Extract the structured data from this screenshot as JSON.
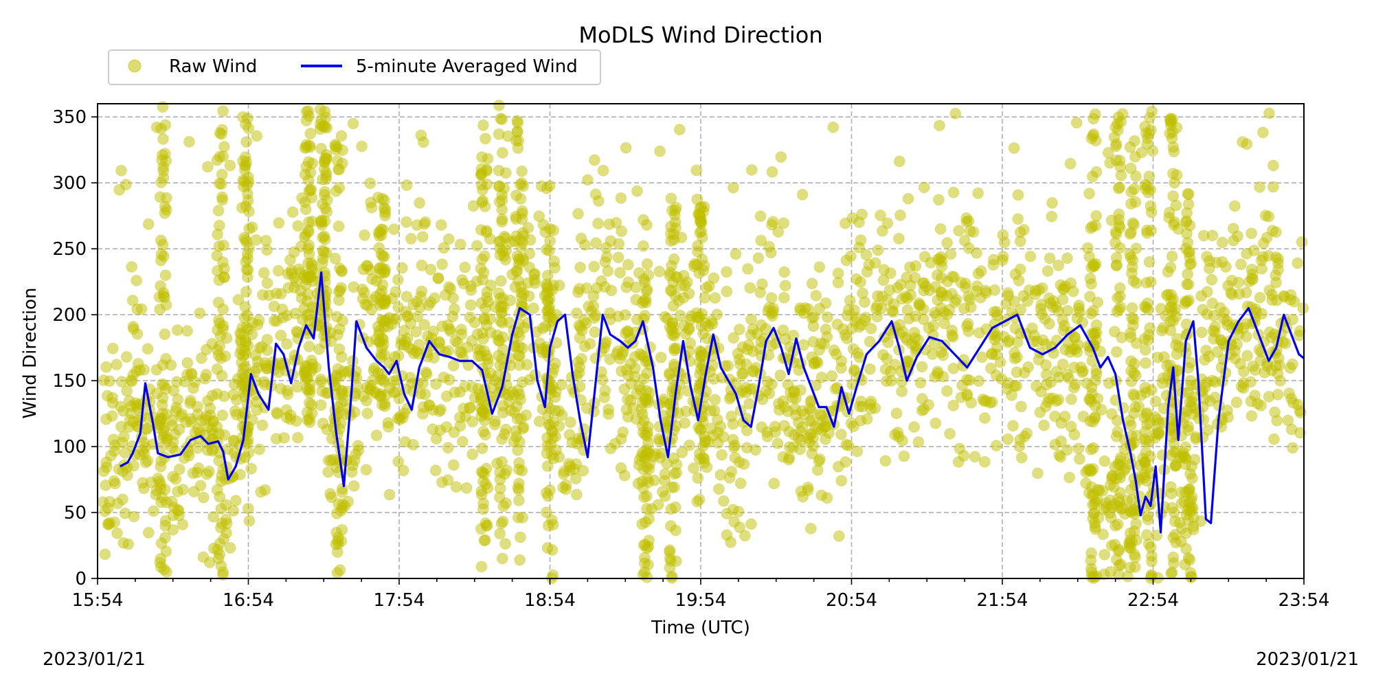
{
  "chart_data": {
    "type": "scatter",
    "title": "MoDLS Wind Direction",
    "xlabel": "Time (UTC)",
    "ylabel": "Wind Direction",
    "xlim": [
      "15:54",
      "23:54"
    ],
    "ylim": [
      0,
      360
    ],
    "x_ticks": [
      "15:54",
      "16:54",
      "17:54",
      "18:54",
      "19:54",
      "20:54",
      "21:54",
      "22:54",
      "23:54"
    ],
    "y_ticks": [
      0,
      50,
      100,
      150,
      200,
      250,
      300,
      350
    ],
    "date_left": "2023/01/21",
    "date_right": "2023/01/21",
    "grid": true,
    "legend_position": "top-left",
    "series": [
      {
        "name": "Raw Wind",
        "kind": "scatter",
        "color": "#bfbf00",
        "center_profile": [
          [
            "15:54",
            90
          ],
          [
            "16:05",
            110
          ],
          [
            "16:10",
            145
          ],
          [
            "16:15",
            100
          ],
          [
            "16:30",
            105
          ],
          [
            "16:45",
            90
          ],
          [
            "16:54",
            150
          ],
          [
            "17:05",
            175
          ],
          [
            "17:15",
            185
          ],
          [
            "17:20",
            230
          ],
          [
            "17:28",
            110
          ],
          [
            "17:32",
            75
          ],
          [
            "17:40",
            190
          ],
          [
            "17:54",
            165
          ],
          [
            "18:05",
            170
          ],
          [
            "18:20",
            165
          ],
          [
            "18:35",
            140
          ],
          [
            "18:45",
            200
          ],
          [
            "18:54",
            200
          ],
          [
            "19:00",
            95
          ],
          [
            "19:10",
            195
          ],
          [
            "19:25",
            175
          ],
          [
            "19:35",
            95
          ],
          [
            "19:45",
            180
          ],
          [
            "19:54",
            165
          ],
          [
            "20:05",
            115
          ],
          [
            "20:20",
            185
          ],
          [
            "20:35",
            140
          ],
          [
            "20:45",
            130
          ],
          [
            "20:54",
            175
          ],
          [
            "21:10",
            180
          ],
          [
            "21:30",
            195
          ],
          [
            "21:54",
            180
          ],
          [
            "22:10",
            190
          ],
          [
            "22:25",
            160
          ],
          [
            "22:35",
            80
          ],
          [
            "22:45",
            60
          ],
          [
            "22:54",
            55
          ],
          [
            "23:00",
            185
          ],
          [
            "23:08",
            60
          ],
          [
            "23:15",
            180
          ],
          [
            "23:30",
            195
          ],
          [
            "23:45",
            185
          ],
          [
            "23:54",
            170
          ]
        ],
        "bursts": [
          [
            "16:20",
            0,
            358
          ],
          [
            "16:43",
            0,
            358
          ],
          [
            "16:53",
            100,
            350
          ],
          [
            "17:18",
            120,
            358
          ],
          [
            "17:24",
            180,
            358
          ],
          [
            "17:30",
            0,
            358
          ],
          [
            "17:47",
            130,
            305
          ],
          [
            "18:28",
            0,
            358
          ],
          [
            "18:35",
            0,
            355
          ],
          [
            "18:42",
            0,
            355
          ],
          [
            "18:54",
            0,
            300
          ],
          [
            "19:32",
            0,
            280
          ],
          [
            "19:43",
            0,
            290
          ],
          [
            "19:54",
            40,
            298
          ],
          [
            "22:30",
            0,
            355
          ],
          [
            "22:40",
            0,
            358
          ],
          [
            "22:46",
            0,
            358
          ],
          [
            "22:52",
            0,
            358
          ],
          [
            "23:02",
            0,
            358
          ],
          [
            "23:08",
            0,
            300
          ]
        ]
      },
      {
        "name": "5-minute Averaged Wind",
        "kind": "line",
        "color": "#0000ee",
        "points": [
          [
            "16:03",
            85
          ],
          [
            "16:06",
            88
          ],
          [
            "16:08",
            95
          ],
          [
            "16:11",
            110
          ],
          [
            "16:13",
            148
          ],
          [
            "16:16",
            118
          ],
          [
            "16:18",
            95
          ],
          [
            "16:22",
            92
          ],
          [
            "16:27",
            94
          ],
          [
            "16:31",
            105
          ],
          [
            "16:35",
            108
          ],
          [
            "16:38",
            102
          ],
          [
            "16:42",
            104
          ],
          [
            "16:44",
            96
          ],
          [
            "16:46",
            75
          ],
          [
            "16:49",
            85
          ],
          [
            "16:52",
            105
          ],
          [
            "16:55",
            155
          ],
          [
            "16:58",
            140
          ],
          [
            "17:02",
            128
          ],
          [
            "17:05",
            178
          ],
          [
            "17:08",
            170
          ],
          [
            "17:11",
            148
          ],
          [
            "17:14",
            175
          ],
          [
            "17:17",
            192
          ],
          [
            "17:20",
            182
          ],
          [
            "17:23",
            232
          ],
          [
            "17:26",
            160
          ],
          [
            "17:29",
            110
          ],
          [
            "17:32",
            70
          ],
          [
            "17:35",
            140
          ],
          [
            "17:37",
            195
          ],
          [
            "17:41",
            175
          ],
          [
            "17:45",
            165
          ],
          [
            "17:48",
            160
          ],
          [
            "17:50",
            155
          ],
          [
            "17:53",
            165
          ],
          [
            "17:56",
            140
          ],
          [
            "17:59",
            128
          ],
          [
            "18:02",
            160
          ],
          [
            "18:06",
            180
          ],
          [
            "18:10",
            170
          ],
          [
            "18:14",
            168
          ],
          [
            "18:18",
            165
          ],
          [
            "18:23",
            165
          ],
          [
            "18:27",
            158
          ],
          [
            "18:31",
            125
          ],
          [
            "18:35",
            145
          ],
          [
            "18:39",
            185
          ],
          [
            "18:42",
            205
          ],
          [
            "18:46",
            200
          ],
          [
            "18:49",
            150
          ],
          [
            "18:52",
            130
          ],
          [
            "18:54",
            175
          ],
          [
            "18:57",
            195
          ],
          [
            "19:00",
            200
          ],
          [
            "19:03",
            155
          ],
          [
            "19:06",
            120
          ],
          [
            "19:09",
            92
          ],
          [
            "19:12",
            145
          ],
          [
            "19:15",
            200
          ],
          [
            "19:18",
            185
          ],
          [
            "19:22",
            180
          ],
          [
            "19:25",
            175
          ],
          [
            "19:28",
            180
          ],
          [
            "19:31",
            195
          ],
          [
            "19:35",
            160
          ],
          [
            "19:38",
            120
          ],
          [
            "19:41",
            92
          ],
          [
            "19:44",
            140
          ],
          [
            "19:47",
            180
          ],
          [
            "19:50",
            145
          ],
          [
            "19:53",
            120
          ],
          [
            "19:56",
            155
          ],
          [
            "19:59",
            185
          ],
          [
            "20:02",
            160
          ],
          [
            "20:05",
            150
          ],
          [
            "20:08",
            140
          ],
          [
            "20:11",
            120
          ],
          [
            "20:14",
            115
          ],
          [
            "20:17",
            145
          ],
          [
            "20:20",
            180
          ],
          [
            "20:23",
            190
          ],
          [
            "20:26",
            175
          ],
          [
            "20:29",
            155
          ],
          [
            "20:32",
            182
          ],
          [
            "20:35",
            160
          ],
          [
            "20:38",
            145
          ],
          [
            "20:41",
            130
          ],
          [
            "20:44",
            130
          ],
          [
            "20:47",
            115
          ],
          [
            "20:50",
            145
          ],
          [
            "20:53",
            125
          ],
          [
            "20:56",
            145
          ],
          [
            "21:00",
            170
          ],
          [
            "21:05",
            180
          ],
          [
            "21:10",
            195
          ],
          [
            "21:13",
            175
          ],
          [
            "21:16",
            150
          ],
          [
            "21:20",
            168
          ],
          [
            "21:25",
            183
          ],
          [
            "21:30",
            180
          ],
          [
            "21:35",
            170
          ],
          [
            "21:40",
            160
          ],
          [
            "21:45",
            175
          ],
          [
            "21:50",
            190
          ],
          [
            "21:55",
            195
          ],
          [
            "22:00",
            200
          ],
          [
            "22:05",
            175
          ],
          [
            "22:10",
            170
          ],
          [
            "22:15",
            175
          ],
          [
            "22:20",
            185
          ],
          [
            "22:25",
            192
          ],
          [
            "22:30",
            175
          ],
          [
            "22:33",
            160
          ],
          [
            "22:36",
            168
          ],
          [
            "22:39",
            155
          ],
          [
            "22:42",
            120
          ],
          [
            "22:45",
            95
          ],
          [
            "22:47",
            75
          ],
          [
            "22:49",
            48
          ],
          [
            "22:51",
            62
          ],
          [
            "22:53",
            55
          ],
          [
            "22:55",
            85
          ],
          [
            "22:57",
            35
          ],
          [
            "23:00",
            130
          ],
          [
            "23:02",
            160
          ],
          [
            "23:04",
            105
          ],
          [
            "23:07",
            180
          ],
          [
            "23:10",
            195
          ],
          [
            "23:12",
            150
          ],
          [
            "23:15",
            45
          ],
          [
            "23:17",
            42
          ],
          [
            "23:20",
            120
          ],
          [
            "23:24",
            180
          ],
          [
            "23:28",
            195
          ],
          [
            "23:32",
            205
          ],
          [
            "23:36",
            185
          ],
          [
            "23:40",
            165
          ],
          [
            "23:43",
            175
          ],
          [
            "23:46",
            200
          ],
          [
            "23:49",
            185
          ],
          [
            "23:52",
            170
          ],
          [
            "23:54",
            167
          ]
        ]
      }
    ]
  }
}
